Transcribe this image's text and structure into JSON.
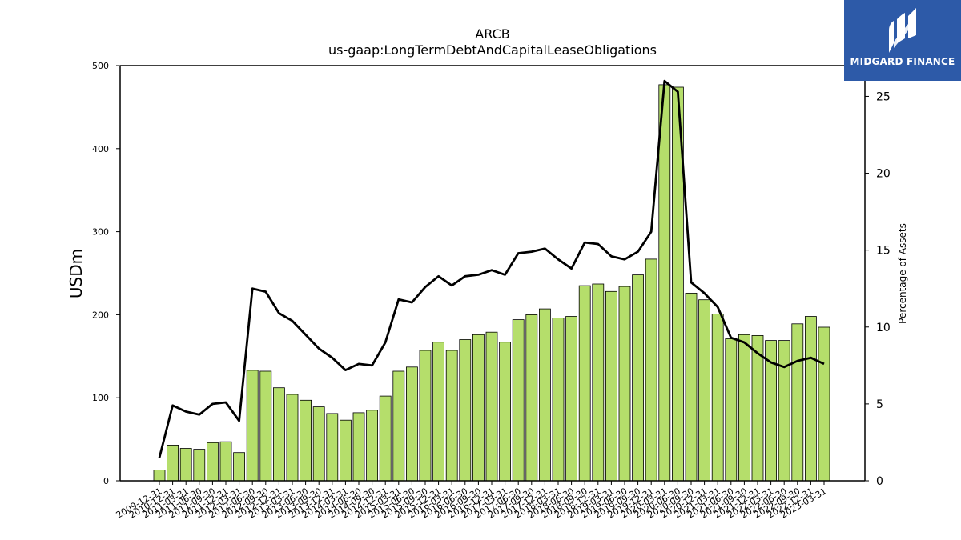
{
  "chart_data": {
    "type": "bar",
    "title": "ARCB",
    "subtitle": "us-gaap:LongTermDebtAndCapitalLeaseObligations",
    "ylabel": "USDm",
    "y2label": "Percentage of Assets",
    "ylim": [
      0,
      500
    ],
    "y2lim": [
      0,
      27
    ],
    "yticks": [
      0,
      100,
      200,
      300,
      400,
      500
    ],
    "y2ticks": [
      0,
      5,
      10,
      15,
      20,
      25
    ],
    "categories": [
      "2009-12-31",
      "2010-12-31",
      "2011-03-31",
      "2011-06-30",
      "2011-09-30",
      "2011-12-31",
      "2012-03-31",
      "2012-06-30",
      "2012-09-30",
      "2012-12-31",
      "2013-03-31",
      "2013-06-30",
      "2013-09-30",
      "2013-12-31",
      "2014-03-31",
      "2014-06-30",
      "2014-09-30",
      "2014-12-31",
      "2015-03-31",
      "2015-06-30",
      "2015-09-30",
      "2015-12-31",
      "2016-03-31",
      "2016-06-30",
      "2016-09-30",
      "2016-12-31",
      "2017-03-31",
      "2017-06-30",
      "2017-09-30",
      "2017-12-31",
      "2018-03-31",
      "2018-06-30",
      "2018-09-30",
      "2018-12-31",
      "2019-03-31",
      "2019-06-30",
      "2019-09-30",
      "2019-12-31",
      "2020-03-31",
      "2020-06-30",
      "2020-09-30",
      "2020-12-31",
      "2021-03-31",
      "2021-06-30",
      "2021-09-30",
      "2021-12-31",
      "2022-03-31",
      "2022-06-30",
      "2022-09-30",
      "2022-12-31",
      "2023-03-31"
    ],
    "series": [
      {
        "type": "bar",
        "color": "#b5de6b",
        "values": [
          13,
          43,
          39,
          38,
          46,
          47,
          34,
          133,
          132,
          112,
          104,
          97,
          89,
          81,
          73,
          82,
          85,
          102,
          132,
          137,
          157,
          167,
          157,
          170,
          176,
          179,
          167,
          194,
          200,
          207,
          196,
          198,
          235,
          237,
          228,
          234,
          248,
          267,
          477,
          474,
          226,
          218,
          201,
          171,
          176,
          175,
          169,
          169,
          189,
          198,
          185
        ]
      },
      {
        "type": "line",
        "axis": "y2",
        "color": "#000000",
        "values": [
          1.5,
          4.9,
          4.5,
          4.3,
          5.0,
          5.1,
          3.9,
          12.5,
          12.3,
          10.9,
          10.4,
          9.5,
          8.6,
          8.0,
          7.2,
          7.6,
          7.5,
          9.0,
          11.8,
          11.6,
          12.6,
          13.3,
          12.7,
          13.3,
          13.4,
          13.7,
          13.4,
          14.8,
          14.9,
          15.1,
          14.4,
          13.8,
          15.5,
          15.4,
          14.6,
          14.4,
          14.9,
          16.2,
          26.0,
          25.3,
          12.9,
          12.2,
          11.3,
          9.3,
          9.0,
          8.3,
          7.7,
          7.4,
          7.8,
          8.0,
          7.6
        ]
      }
    ]
  },
  "brand": {
    "name": "MIDGARD FINANCE",
    "color": "#2d5aa8"
  }
}
